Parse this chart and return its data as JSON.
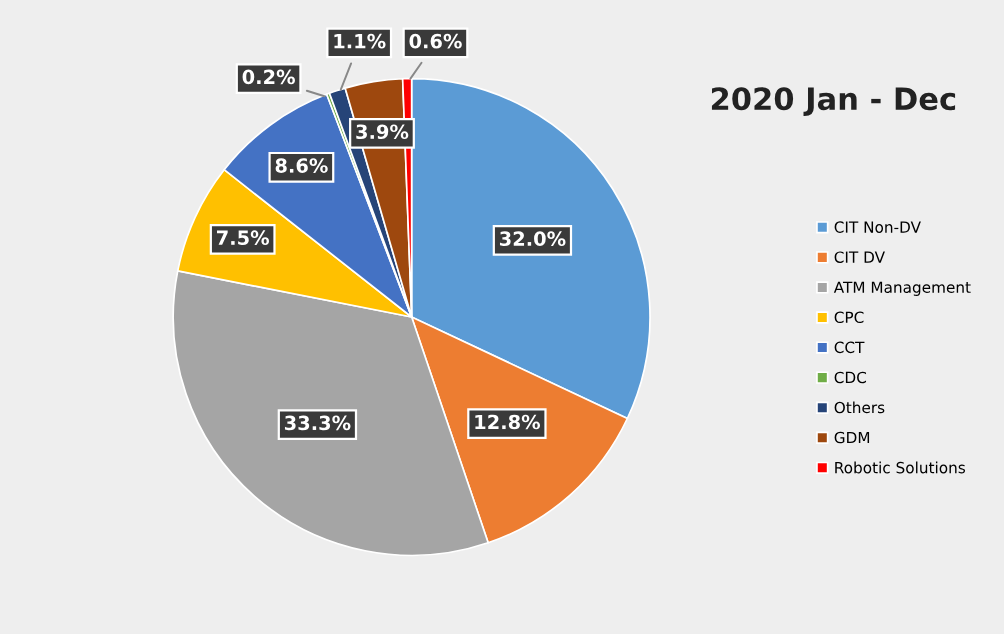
{
  "chart_data": {
    "type": "pie",
    "title": "2020 Jan - Dec",
    "categories": [
      "CIT Non-DV",
      "CIT DV",
      "ATM Management",
      "CPC",
      "CCT",
      "CDC",
      "Others",
      "GDM",
      "Robotic Solutions"
    ],
    "values": [
      32.0,
      12.8,
      33.3,
      7.5,
      8.6,
      0.2,
      1.1,
      3.9,
      0.6
    ],
    "value_labels": [
      "32.0%",
      "12.8%",
      "33.3%",
      "7.5%",
      "8.6%",
      "0.2%",
      "1.1%",
      "3.9%",
      "0.6%"
    ],
    "colors": [
      "#5b9bd5",
      "#ed7d31",
      "#a5a5a5",
      "#ffc000",
      "#4472c4",
      "#70ad47",
      "#264478",
      "#9e480e",
      "#ff0000"
    ],
    "legend": "right"
  }
}
